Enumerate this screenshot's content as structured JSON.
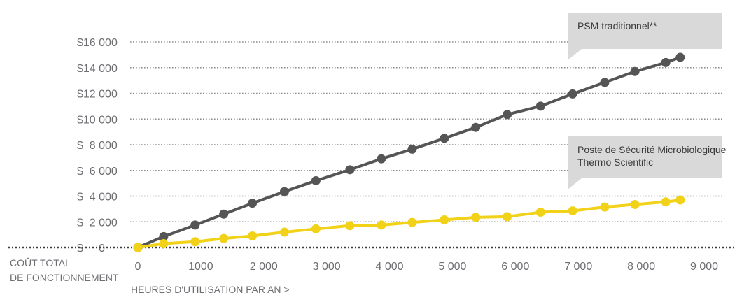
{
  "chart_data": {
    "type": "line",
    "x": [
      0,
      410,
      910,
      1365,
      1820,
      2330,
      2830,
      3370,
      3870,
      4360,
      4870,
      5370,
      5870,
      6400,
      6910,
      7420,
      7900,
      8390,
      8620
    ],
    "x_ticks": [
      {
        "value": 0,
        "label": "0"
      },
      {
        "value": 1000,
        "label": "1000"
      },
      {
        "value": 2000,
        "label": "2 000"
      },
      {
        "value": 3000,
        "label": "3 000"
      },
      {
        "value": 4000,
        "label": "4 000"
      },
      {
        "value": 5000,
        "label": "5 000"
      },
      {
        "value": 6000,
        "label": "6 000"
      },
      {
        "value": 7000,
        "label": "7 000"
      },
      {
        "value": 8000,
        "label": "8 000"
      },
      {
        "value": 9000,
        "label": "9 000"
      }
    ],
    "y_ticks": [
      {
        "value": 0,
        "label": "$     0"
      },
      {
        "value": 2000,
        "label": "$  2 000"
      },
      {
        "value": 4000,
        "label": "$  4 000"
      },
      {
        "value": 6000,
        "label": "$  6 000"
      },
      {
        "value": 8000,
        "label": "$  8 000"
      },
      {
        "value": 10000,
        "label": "$10 000"
      },
      {
        "value": 12000,
        "label": "$12 000"
      },
      {
        "value": 14000,
        "label": "$14 000"
      },
      {
        "value": 16000,
        "label": "$16 000"
      }
    ],
    "xlim": [
      0,
      9000
    ],
    "ylim": [
      0,
      16000
    ],
    "xlabel": "HEURES D'UTILISATION PAR AN >",
    "ylabel_lines": [
      "COÛT TOTAL",
      "DE FONCTIONNEMENT"
    ],
    "grid": "horizontal dotted",
    "series": [
      {
        "name_lines": [
          "PSM traditionnel**"
        ],
        "color": "#555555",
        "values": [
          0,
          850,
          1750,
          2600,
          3450,
          4350,
          5200,
          6050,
          6900,
          7650,
          8500,
          9350,
          10350,
          11000,
          11950,
          12850,
          13700,
          14400,
          14800
        ]
      },
      {
        "name_lines": [
          "Poste de Sécurité Microbiologique",
          "Thermo Scientific"
        ],
        "color": "#f2d218",
        "values": [
          0,
          300,
          450,
          700,
          900,
          1200,
          1450,
          1700,
          1750,
          1950,
          2150,
          2350,
          2400,
          2750,
          2850,
          3150,
          3350,
          3550,
          3700
        ]
      }
    ]
  }
}
